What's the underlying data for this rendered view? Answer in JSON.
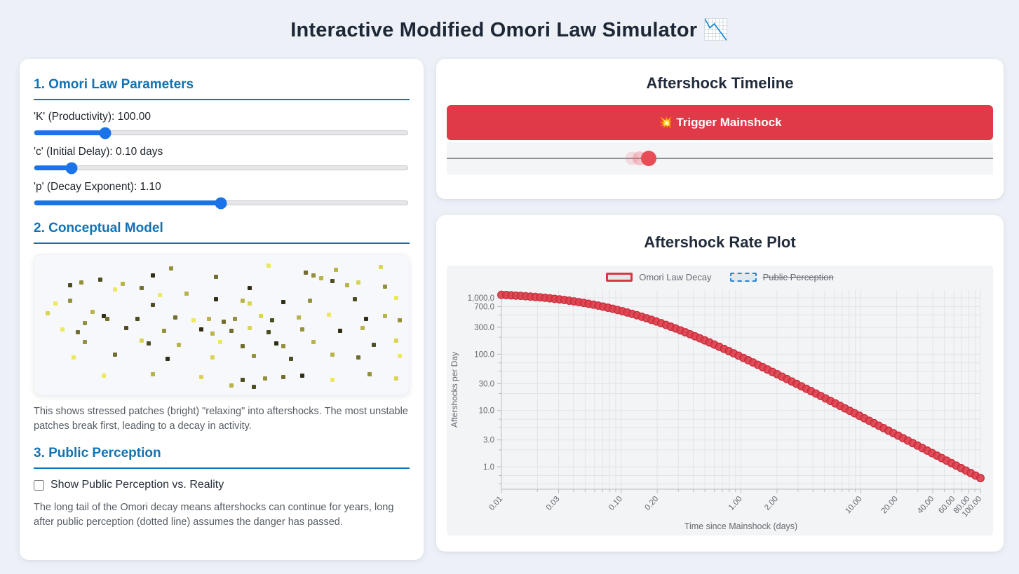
{
  "page": {
    "title": "Interactive Modified Omori Law Simulator 📉"
  },
  "parameters_panel": {
    "heading": "1. Omori Law Parameters",
    "sliders": [
      {
        "id": "K",
        "label": "'K' (Productivity): 100.00",
        "percent": 19
      },
      {
        "id": "c",
        "label": "'c' (Initial Delay): 0.10 days",
        "percent": 10
      },
      {
        "id": "p",
        "label": "'p' (Decay Exponent): 1.10",
        "percent": 50
      }
    ],
    "model_heading": "2. Conceptual Model",
    "model_caption": "This shows stressed patches (bright) \"relaxing\" into aftershocks. The most unstable patches break first, leading to a decay in activity.",
    "patches": {
      "palette": [
        "#ece95d",
        "#d9d553",
        "#b8b44a",
        "#94903c",
        "#716e2f",
        "#4e4c21",
        "#302e14"
      ],
      "points": [
        [
          36,
          8,
          3
        ],
        [
          62,
          6,
          0
        ],
        [
          17,
          16,
          5
        ],
        [
          31,
          13,
          6
        ],
        [
          80,
          9,
          2
        ],
        [
          92,
          7,
          1
        ],
        [
          72,
          11,
          4
        ],
        [
          74,
          13,
          3
        ],
        [
          76,
          15,
          2
        ],
        [
          48,
          14,
          4
        ],
        [
          9,
          20,
          5
        ],
        [
          12,
          18,
          3
        ],
        [
          23,
          19,
          2
        ],
        [
          21,
          23,
          0
        ],
        [
          28,
          22,
          4
        ],
        [
          57,
          22,
          6
        ],
        [
          83,
          20,
          2
        ],
        [
          86,
          18,
          1
        ],
        [
          79,
          17,
          5
        ],
        [
          93,
          21,
          3
        ],
        [
          33,
          27,
          0
        ],
        [
          40,
          26,
          2
        ],
        [
          5,
          33,
          0
        ],
        [
          9,
          31,
          3
        ],
        [
          31,
          34,
          5
        ],
        [
          48,
          30,
          6
        ],
        [
          55,
          31,
          2
        ],
        [
          57,
          33,
          1
        ],
        [
          66,
          32,
          6
        ],
        [
          73,
          31,
          3
        ],
        [
          85,
          30,
          5
        ],
        [
          96,
          29,
          0
        ],
        [
          3,
          40,
          1
        ],
        [
          15,
          39,
          2
        ],
        [
          18,
          42,
          6
        ],
        [
          19,
          44,
          4
        ],
        [
          13,
          47,
          3
        ],
        [
          27,
          44,
          5
        ],
        [
          37,
          43,
          4
        ],
        [
          42,
          45,
          0
        ],
        [
          46,
          44,
          2
        ],
        [
          50,
          46,
          4
        ],
        [
          53,
          44,
          3
        ],
        [
          60,
          42,
          1
        ],
        [
          63,
          45,
          5
        ],
        [
          70,
          43,
          2
        ],
        [
          78,
          41,
          0
        ],
        [
          88,
          44,
          6
        ],
        [
          93,
          42,
          2
        ],
        [
          97,
          45,
          3
        ],
        [
          7,
          52,
          0
        ],
        [
          11,
          54,
          4
        ],
        [
          24,
          51,
          5
        ],
        [
          34,
          53,
          3
        ],
        [
          44,
          52,
          6
        ],
        [
          47,
          55,
          2
        ],
        [
          52,
          53,
          4
        ],
        [
          57,
          51,
          1
        ],
        [
          62,
          54,
          5
        ],
        [
          71,
          52,
          3
        ],
        [
          81,
          53,
          6
        ],
        [
          87,
          51,
          2
        ],
        [
          13,
          61,
          3
        ],
        [
          28,
          60,
          1
        ],
        [
          30,
          62,
          5
        ],
        [
          38,
          63,
          2
        ],
        [
          49,
          61,
          0
        ],
        [
          55,
          64,
          4
        ],
        [
          64,
          62,
          6
        ],
        [
          66,
          64,
          3
        ],
        [
          74,
          61,
          2
        ],
        [
          90,
          63,
          5
        ],
        [
          96,
          60,
          1
        ],
        [
          10,
          72,
          0
        ],
        [
          21,
          70,
          4
        ],
        [
          35,
          73,
          6
        ],
        [
          47,
          72,
          1
        ],
        [
          58,
          71,
          3
        ],
        [
          68,
          73,
          5
        ],
        [
          79,
          70,
          2
        ],
        [
          86,
          72,
          4
        ],
        [
          97,
          71,
          0
        ],
        [
          18,
          85,
          0
        ],
        [
          31,
          84,
          2
        ],
        [
          44,
          86,
          1
        ],
        [
          55,
          88,
          5
        ],
        [
          61,
          87,
          3
        ],
        [
          66,
          86,
          4
        ],
        [
          71,
          85,
          6
        ],
        [
          79,
          88,
          0
        ],
        [
          89,
          84,
          3
        ],
        [
          96,
          87,
          1
        ],
        [
          52,
          92,
          2
        ],
        [
          58,
          93,
          5
        ]
      ]
    },
    "perception_heading": "3. Public Perception",
    "checkbox_label": "Show Public Perception vs. Reality",
    "checkbox_checked": false,
    "perception_caption": "The long tail of the Omori decay means aftershocks can continue for years, long after public perception (dotted line) assumes the danger has passed."
  },
  "timeline_panel": {
    "heading": "Aftershock Timeline",
    "button_label": "💥 Trigger Mainshock",
    "marker_percent": 37,
    "ghost_offsets_percent": [
      -1.7,
      -3.1
    ]
  },
  "plot_panel": {
    "heading": "Aftershock Rate Plot"
  },
  "chart_data": {
    "type": "scatter",
    "title": "Aftershock Rate Plot",
    "xlabel": "Time since Mainshock (days)",
    "ylabel": "Aftershocks per Day",
    "x_scale": "log",
    "y_scale": "log",
    "xlim": [
      0.01,
      100
    ],
    "ylim": [
      0.4,
      1372
    ],
    "x_ticks": [
      {
        "v": 0.01,
        "label": "0.01"
      },
      {
        "v": 0.03,
        "label": "0.03"
      },
      {
        "v": 0.1,
        "label": "0.10"
      },
      {
        "v": 0.2,
        "label": "0.20"
      },
      {
        "v": 1,
        "label": "1.00"
      },
      {
        "v": 2,
        "label": "2.00"
      },
      {
        "v": 10,
        "label": "10.00"
      },
      {
        "v": 20,
        "label": "20.00"
      },
      {
        "v": 40,
        "label": "40.00"
      },
      {
        "v": 60,
        "label": "60.00"
      },
      {
        "v": 80,
        "label": "80.00"
      },
      {
        "v": 100,
        "label": "100.00"
      }
    ],
    "x_minor": [
      0.02,
      0.04,
      0.05,
      0.06,
      0.07,
      0.08,
      0.09,
      0.3,
      0.4,
      0.5,
      0.6,
      0.7,
      0.8,
      0.9,
      3,
      4,
      5,
      6,
      7,
      8,
      9,
      30,
      50,
      70,
      90
    ],
    "y_ticks": [
      {
        "v": 1000,
        "label": "1,000.0"
      },
      {
        "v": 700,
        "label": "700.0"
      },
      {
        "v": 300,
        "label": "300.0"
      },
      {
        "v": 100,
        "label": "100.0"
      },
      {
        "v": 30,
        "label": "30.0"
      },
      {
        "v": 10,
        "label": "10.0"
      },
      {
        "v": 3,
        "label": "3.0"
      },
      {
        "v": 1,
        "label": "1.0"
      }
    ],
    "y_minor": [
      500,
      200,
      70,
      50,
      20,
      7,
      5,
      2,
      0.7,
      0.5
    ],
    "legend": [
      {
        "label": "Omori Law Decay",
        "border": "#dc3545",
        "dashed": false,
        "struck": false
      },
      {
        "label": "Public Perception",
        "border": "#2782d6",
        "dashed": true,
        "struck": true
      }
    ],
    "series": [
      {
        "name": "Omori Law Decay",
        "visible": true,
        "point_fill": "#dd3d4a",
        "point_border": "#cb2a39",
        "omori_params": {
          "K": 100,
          "c": 0.1,
          "p": 1.1
        },
        "t_range": [
          0.01,
          100
        ],
        "n_points": 100,
        "first_value": 1134.1,
        "last_value": 0.63
      },
      {
        "name": "Public Perception",
        "visible": false
      }
    ]
  }
}
